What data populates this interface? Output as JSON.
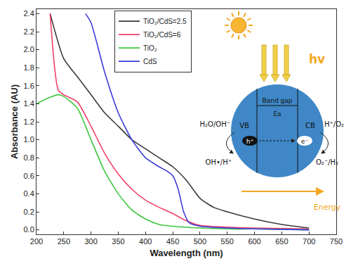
{
  "chart_data": {
    "type": "line",
    "x_label": "Wavelength (nm)",
    "y_label": "Absorbance (AU)",
    "xlim": [
      200,
      750
    ],
    "xticks": [
      200,
      250,
      300,
      350,
      400,
      450,
      500,
      550,
      600,
      650,
      700,
      750
    ],
    "ylim": [
      -0.05,
      2.45
    ],
    "yticks": [
      {
        "value": 0,
        "label": "0.0"
      },
      0.2,
      0.4,
      0.6,
      0.8,
      {
        "value": 1,
        "label": "1.0"
      },
      1.2,
      1.4,
      1.6,
      1.8,
      {
        "value": 2,
        "label": "2.0"
      },
      2.2,
      2.4
    ],
    "grid": false,
    "legend": "upper center",
    "series": [
      {
        "name": "TiO₂/CdS=2.5",
        "color": "#3a3a3a",
        "line_style": "solid",
        "x": [
          225,
          250,
          275,
          300,
          325,
          350,
          375,
          400,
          425,
          450,
          475,
          500,
          525,
          550,
          600,
          650,
          700
        ],
        "values": [
          2.4,
          1.9,
          1.7,
          1.5,
          1.3,
          1.15,
          1.0,
          0.9,
          0.8,
          0.7,
          0.55,
          0.35,
          0.25,
          0.2,
          0.12,
          0.06,
          0.02
        ]
      },
      {
        "name": "TiO₂/CdS=6",
        "color": "#f0406a",
        "line_style": "solid",
        "x": [
          225,
          240,
          250,
          275,
          300,
          325,
          350,
          375,
          400,
          425,
          450,
          475,
          500,
          550,
          600,
          700
        ],
        "values": [
          2.4,
          1.55,
          1.5,
          1.42,
          1.15,
          0.85,
          0.62,
          0.45,
          0.33,
          0.25,
          0.18,
          0.1,
          0.05,
          0.03,
          0.02,
          0.01
        ]
      },
      {
        "name": "TiO₂",
        "color": "#3cc83c",
        "line_style": "solid",
        "x": [
          200,
          220,
          240,
          250,
          275,
          300,
          325,
          350,
          375,
          400,
          425,
          450,
          500,
          550,
          600,
          700
        ],
        "values": [
          1.4,
          1.46,
          1.5,
          1.48,
          1.35,
          1.0,
          0.65,
          0.4,
          0.22,
          0.12,
          0.06,
          0.04,
          0.02,
          0.01,
          0.01,
          0.0
        ]
      },
      {
        "name": "CdS",
        "color": "#3b3bdc",
        "line_style": "solid",
        "x": [
          290,
          300,
          325,
          350,
          375,
          400,
          425,
          440,
          450,
          460,
          470,
          480,
          500,
          550,
          600,
          700
        ],
        "values": [
          2.4,
          2.3,
          1.75,
          1.3,
          1.0,
          0.8,
          0.7,
          0.65,
          0.6,
          0.45,
          0.2,
          0.08,
          0.04,
          0.02,
          0.01,
          0.0
        ]
      }
    ],
    "annotations": [
      "hv",
      "Band gap",
      "Ea",
      "VB",
      "CB",
      "h⁺",
      "e⁻",
      "H₂O/OH⁻",
      "OH•/H⁺",
      "H⁺/O₂",
      "O₂⁻/H₂",
      "Energy"
    ]
  }
}
